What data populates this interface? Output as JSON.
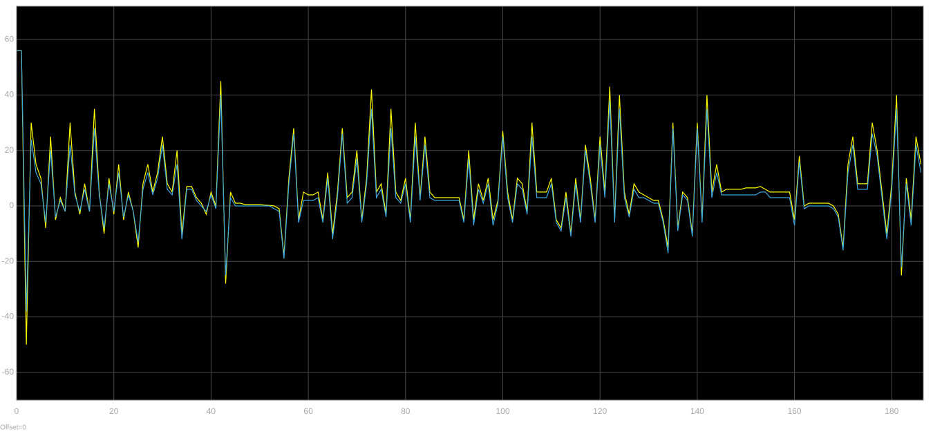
{
  "chart_data": {
    "type": "line",
    "annotation": "Offset=0",
    "x": [
      0,
      1,
      2,
      3,
      4,
      5,
      6,
      7,
      8,
      9,
      10,
      11,
      12,
      13,
      14,
      15,
      16,
      17,
      18,
      19,
      20,
      21,
      22,
      23,
      24,
      25,
      26,
      27,
      28,
      29,
      30,
      31,
      32,
      33,
      34,
      35,
      36,
      37,
      38,
      39,
      40,
      41,
      42,
      43,
      44,
      45,
      46,
      47,
      48,
      49,
      50,
      51,
      52,
      53,
      54,
      55,
      56,
      57,
      58,
      59,
      60,
      61,
      62,
      63,
      64,
      65,
      66,
      67,
      68,
      69,
      70,
      71,
      72,
      73,
      74,
      75,
      76,
      77,
      78,
      79,
      80,
      81,
      82,
      83,
      84,
      85,
      86,
      87,
      88,
      89,
      90,
      91,
      92,
      93,
      94,
      95,
      96,
      97,
      98,
      99,
      100,
      101,
      102,
      103,
      104,
      105,
      106,
      107,
      108,
      109,
      110,
      111,
      112,
      113,
      114,
      115,
      116,
      117,
      118,
      119,
      120,
      121,
      122,
      123,
      124,
      125,
      126,
      127,
      128,
      129,
      130,
      131,
      132,
      133,
      134,
      135,
      136,
      137,
      138,
      139,
      140,
      141,
      142,
      143,
      144,
      145,
      146,
      147,
      148,
      149,
      150,
      151,
      152,
      153,
      154,
      155,
      156,
      157,
      158,
      159,
      160,
      161,
      162,
      163,
      164,
      165,
      166,
      167,
      168,
      169,
      170,
      171,
      172,
      173,
      174,
      175,
      176,
      177,
      178,
      179,
      180,
      181,
      182,
      183,
      184,
      185,
      186
    ],
    "series": [
      {
        "color": "#ffff00",
        "values": [
          56,
          56,
          -50,
          30,
          15,
          10,
          -8,
          25,
          -5,
          3,
          -2,
          30,
          5,
          -3,
          8,
          -2,
          35,
          5,
          -10,
          10,
          -3,
          15,
          -5,
          5,
          -2,
          -15,
          8,
          15,
          5,
          12,
          25,
          8,
          5,
          20,
          -10,
          7,
          7,
          3,
          1,
          -3,
          5,
          0,
          45,
          -28,
          5,
          1,
          1,
          0.5,
          0.5,
          0.5,
          0.5,
          0.3,
          0.2,
          0,
          -1,
          -18,
          10,
          28,
          -5,
          5,
          4,
          4,
          5,
          -5,
          12,
          -10,
          5,
          28,
          3,
          5,
          20,
          -5,
          10,
          42,
          5,
          8,
          -3,
          35,
          5,
          2,
          10,
          -5,
          30,
          3,
          25,
          5,
          3,
          3,
          3,
          3,
          3,
          3,
          -5,
          20,
          -5,
          8,
          2,
          10,
          -5,
          2,
          27,
          5,
          -5,
          10,
          8,
          -2,
          30,
          5,
          5,
          5,
          10,
          -5,
          -8,
          5,
          -10,
          10,
          -5,
          22,
          10,
          -5,
          25,
          5,
          43,
          -5,
          40,
          5,
          -3,
          8,
          5,
          4,
          3,
          2,
          2,
          -5,
          -15,
          30,
          -8,
          5,
          3,
          -10,
          30,
          -5,
          40,
          5,
          15,
          5,
          6,
          6,
          6,
          6,
          6.5,
          6.5,
          6.5,
          7,
          6,
          5,
          5,
          5,
          5,
          5,
          -5,
          18,
          0,
          1,
          1,
          1,
          1,
          1,
          0,
          -3,
          -15,
          15,
          25,
          8,
          8,
          8,
          30,
          20,
          5,
          -10,
          8,
          40,
          -25,
          10,
          -5,
          25,
          15
        ]
      },
      {
        "color": "#3ea6dc",
        "values": [
          56,
          56,
          -38,
          24,
          12,
          8,
          -6,
          20,
          -4,
          2,
          -2,
          22,
          4,
          -2,
          6,
          -2,
          28,
          4,
          -8,
          8,
          -2,
          12,
          -4,
          4,
          -2,
          -13,
          6,
          12,
          4,
          10,
          22,
          6,
          4,
          15,
          -12,
          6,
          6,
          2,
          0,
          -2,
          4,
          -1,
          40,
          -25,
          3,
          0,
          0,
          0,
          0,
          0,
          0,
          0,
          0,
          -1,
          -2,
          -19,
          8,
          26,
          -6,
          2,
          2,
          2,
          3,
          -6,
          10,
          -12,
          3,
          26,
          1,
          3,
          17,
          -6,
          8,
          35,
          3,
          6,
          -4,
          28,
          3,
          1,
          8,
          -6,
          25,
          2,
          22,
          3,
          2,
          2,
          2,
          2,
          2,
          2,
          -6,
          17,
          -7,
          6,
          1,
          8,
          -7,
          1,
          25,
          3,
          -6,
          8,
          6,
          -3,
          25,
          3,
          3,
          3,
          8,
          -6,
          -9,
          3,
          -11,
          8,
          -6,
          20,
          8,
          -6,
          22,
          3,
          38,
          -6,
          35,
          3,
          -4,
          6,
          3,
          3,
          2,
          1,
          1,
          -6,
          -17,
          28,
          -9,
          4,
          2,
          -11,
          28,
          -6,
          35,
          3,
          12,
          4,
          4,
          4,
          4,
          4,
          4,
          4,
          4,
          5,
          5,
          3,
          3,
          3,
          3,
          3,
          -7,
          16,
          -1,
          0,
          0,
          0,
          0,
          0,
          -1,
          -4,
          -16,
          12,
          22,
          6,
          6,
          6,
          26,
          18,
          3,
          -12,
          6,
          35,
          -22,
          8,
          -7,
          22,
          12
        ]
      }
    ],
    "xlim": [
      0,
      186.5
    ],
    "ylim": [
      -70,
      72
    ],
    "xticks": [
      0,
      20,
      40,
      60,
      80,
      100,
      120,
      140,
      160,
      180
    ],
    "yticks": [
      -60,
      -40,
      -20,
      0,
      20,
      40,
      60
    ],
    "grid": true
  }
}
